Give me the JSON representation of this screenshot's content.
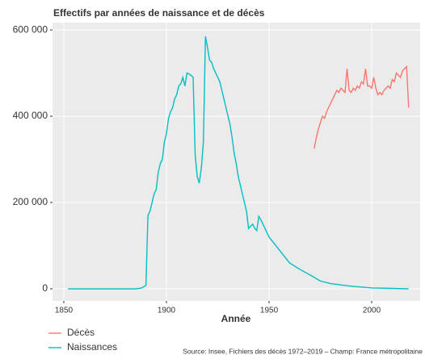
{
  "chart_data": {
    "type": "line",
    "title": "Effectifs par années de naissance et de décès",
    "x_label": "Année",
    "source": "Source: Insee, Fichiers des décès 1972–2019 – Champ: France métropolitaine",
    "xlim": [
      1844.5,
      2023.6
    ],
    "ylim": [
      -28000,
      617000
    ],
    "xticks": [
      1850,
      1900,
      1950,
      2000
    ],
    "yticks": [
      {
        "value": 0,
        "label": "0"
      },
      {
        "value": 200000,
        "label": "200 000"
      },
      {
        "value": 400000,
        "label": "400 000"
      },
      {
        "value": 600000,
        "label": "600 000"
      }
    ],
    "grid": true,
    "legend": "bottom-left",
    "series": [
      {
        "name": "Décès",
        "color": "#f8766d",
        "x": [
          1972,
          1973,
          1974,
          1975,
          1976,
          1977,
          1978,
          1979,
          1980,
          1981,
          1982,
          1983,
          1984,
          1985,
          1986,
          1987,
          1988,
          1989,
          1990,
          1991,
          1992,
          1993,
          1994,
          1995,
          1996,
          1997,
          1998,
          1999,
          2000,
          2001,
          2002,
          2003,
          2004,
          2005,
          2006,
          2007,
          2008,
          2009,
          2010,
          2011,
          2012,
          2013,
          2014,
          2015,
          2016,
          2017,
          2018
        ],
        "values": [
          325000,
          350000,
          370000,
          385000,
          400000,
          395000,
          410000,
          420000,
          430000,
          440000,
          450000,
          460000,
          455000,
          465000,
          460000,
          455000,
          510000,
          460000,
          455000,
          465000,
          460000,
          470000,
          465000,
          480000,
          475000,
          510000,
          470000,
          470000,
          465000,
          490000,
          465000,
          450000,
          455000,
          450000,
          460000,
          465000,
          470000,
          465000,
          485000,
          480000,
          500000,
          495000,
          490000,
          505000,
          510000,
          515000,
          420000
        ]
      },
      {
        "name": "Naissances",
        "color": "#00bfc4",
        "x": [
          1852,
          1870,
          1885,
          1888,
          1890,
          1891,
          1892,
          1893,
          1894,
          1895,
          1896,
          1897,
          1898,
          1899,
          1900,
          1901,
          1902,
          1903,
          1904,
          1905,
          1906,
          1907,
          1908,
          1909,
          1910,
          1911,
          1912,
          1913,
          1914,
          1915,
          1916,
          1917,
          1918,
          1919,
          1920,
          1921,
          1922,
          1923,
          1924,
          1925,
          1926,
          1927,
          1928,
          1929,
          1930,
          1931,
          1932,
          1933,
          1934,
          1935,
          1936,
          1937,
          1938,
          1939,
          1940,
          1941,
          1942,
          1943,
          1944,
          1945,
          1946,
          1947,
          1948,
          1950,
          1955,
          1960,
          1965,
          1970,
          1975,
          1980,
          1990,
          2000,
          2010,
          2018
        ],
        "values": [
          0,
          0,
          0,
          2000,
          8000,
          170000,
          180000,
          200000,
          220000,
          230000,
          270000,
          290000,
          300000,
          340000,
          360000,
          395000,
          410000,
          420000,
          440000,
          450000,
          470000,
          475000,
          490000,
          470000,
          500000,
          498000,
          495000,
          490000,
          310000,
          260000,
          245000,
          280000,
          340000,
          585000,
          560000,
          530000,
          525000,
          510000,
          500000,
          490000,
          480000,
          460000,
          440000,
          420000,
          400000,
          380000,
          350000,
          314000,
          290000,
          260000,
          240000,
          220000,
          200000,
          180000,
          140000,
          145000,
          150000,
          140000,
          135000,
          168000,
          160000,
          150000,
          140000,
          120000,
          90000,
          60000,
          45000,
          32000,
          18000,
          12000,
          6000,
          2000,
          1000,
          0
        ]
      }
    ]
  }
}
